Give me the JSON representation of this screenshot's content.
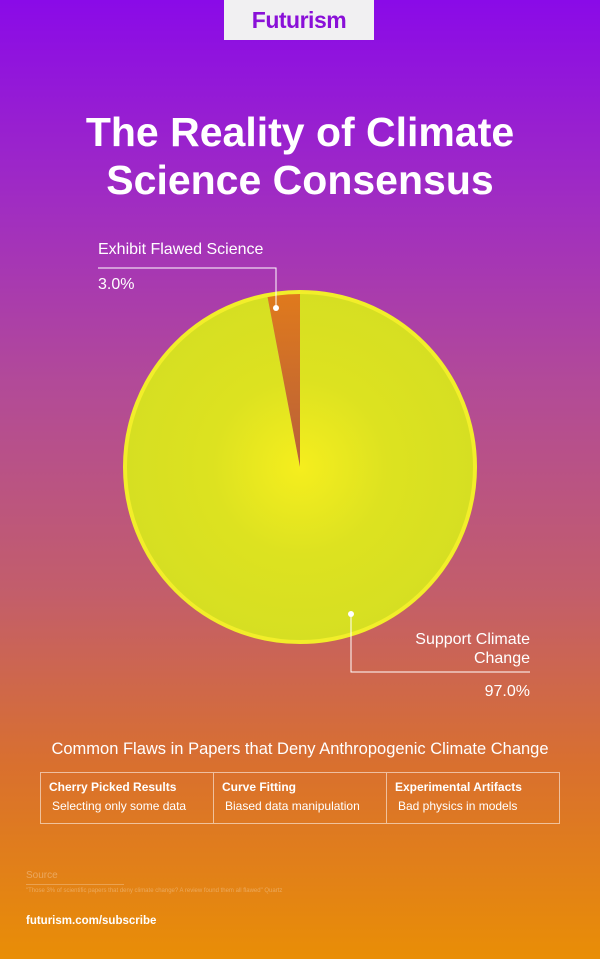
{
  "brand": "Futurism",
  "title_line1": "The Reality of Climate",
  "title_line2": "Science Consensus",
  "chart_data": {
    "type": "pie",
    "title": "The Reality of Climate Science Consensus",
    "slices": [
      {
        "label": "Exhibit Flawed Science",
        "value": 3.0,
        "display": "3.0%",
        "color": "#d8702a"
      },
      {
        "label": "Support Climate Change",
        "value": 97.0,
        "display": "97.0%",
        "color": "#d9e021"
      }
    ]
  },
  "support_label_line1": "Support Climate",
  "support_label_line2": "Change",
  "flaws": {
    "title": "Common Flaws in Papers that Deny Anthropogenic Climate Change",
    "items": [
      {
        "heading": "Cherry Picked Results",
        "desc": "Selecting only some data"
      },
      {
        "heading": "Curve Fitting",
        "desc": "Biased data manipulation"
      },
      {
        "heading": "Experimental Artifacts",
        "desc": "Bad physics in models"
      }
    ]
  },
  "source": {
    "label": "Source",
    "text": "\"Those 3% of scientific papers that deny climate change? A review found them all flawed\" Quartz"
  },
  "subscribe": "futurism.com/subscribe"
}
